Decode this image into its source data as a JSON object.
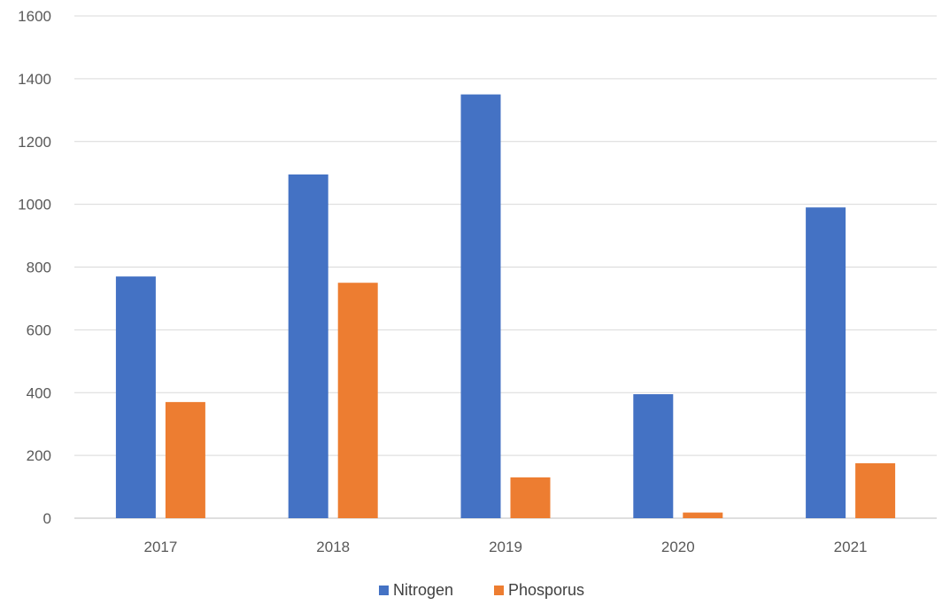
{
  "chart_data": {
    "type": "bar",
    "categories": [
      "2017",
      "2018",
      "2019",
      "2020",
      "2021"
    ],
    "series": [
      {
        "name": "Nitrogen",
        "color": "#4472C4",
        "values": [
          770,
          1095,
          1350,
          395,
          990
        ]
      },
      {
        "name": "Phosporus",
        "color": "#ED7D31",
        "values": [
          370,
          750,
          130,
          18,
          175
        ]
      }
    ],
    "yticks": [
      0,
      200,
      400,
      600,
      800,
      1000,
      1200,
      1400,
      1600
    ],
    "ylim": [
      0,
      1600
    ],
    "grid": true,
    "legend_position": "bottom",
    "gridline_color": "#D9D9D9",
    "axis_color": "#BFBFBF"
  }
}
